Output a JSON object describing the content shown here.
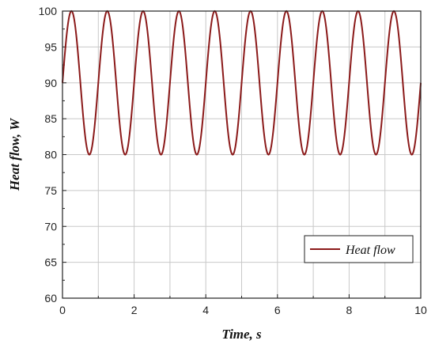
{
  "chart_data": {
    "type": "line",
    "title": "",
    "xlabel": "Time, s",
    "ylabel": "Heat flow, W",
    "xlim": [
      0,
      10
    ],
    "ylim": [
      60,
      100
    ],
    "xticks": [
      0,
      2,
      4,
      6,
      8,
      10
    ],
    "yticks": [
      60,
      65,
      70,
      75,
      80,
      85,
      90,
      95,
      100
    ],
    "grid": true,
    "legend_position": "bottom-right",
    "series": [
      {
        "name": "Heat flow",
        "color": "#8b1a1a",
        "function": "90 + 10*sin(2*pi*t)",
        "period": 1,
        "min": 80,
        "max": 100,
        "x": [
          0,
          0.25,
          0.5,
          0.75,
          1,
          1.25,
          1.5,
          1.75,
          2,
          2.25,
          2.5,
          2.75,
          3,
          3.25,
          3.5,
          3.75,
          4,
          4.25,
          4.5,
          4.75,
          5,
          5.25,
          5.5,
          5.75,
          6,
          6.25,
          6.5,
          6.75,
          7,
          7.25,
          7.5,
          7.75,
          8,
          8.25,
          8.5,
          8.75,
          9,
          9.25,
          9.5,
          9.75,
          10
        ],
        "values": [
          90,
          100,
          90,
          80,
          90,
          100,
          90,
          80,
          90,
          100,
          90,
          80,
          90,
          100,
          90,
          80,
          90,
          100,
          90,
          80,
          90,
          100,
          90,
          80,
          90,
          100,
          90,
          80,
          90,
          100,
          90,
          80,
          90,
          100,
          90,
          80,
          90,
          100,
          90,
          80,
          90
        ]
      }
    ]
  }
}
